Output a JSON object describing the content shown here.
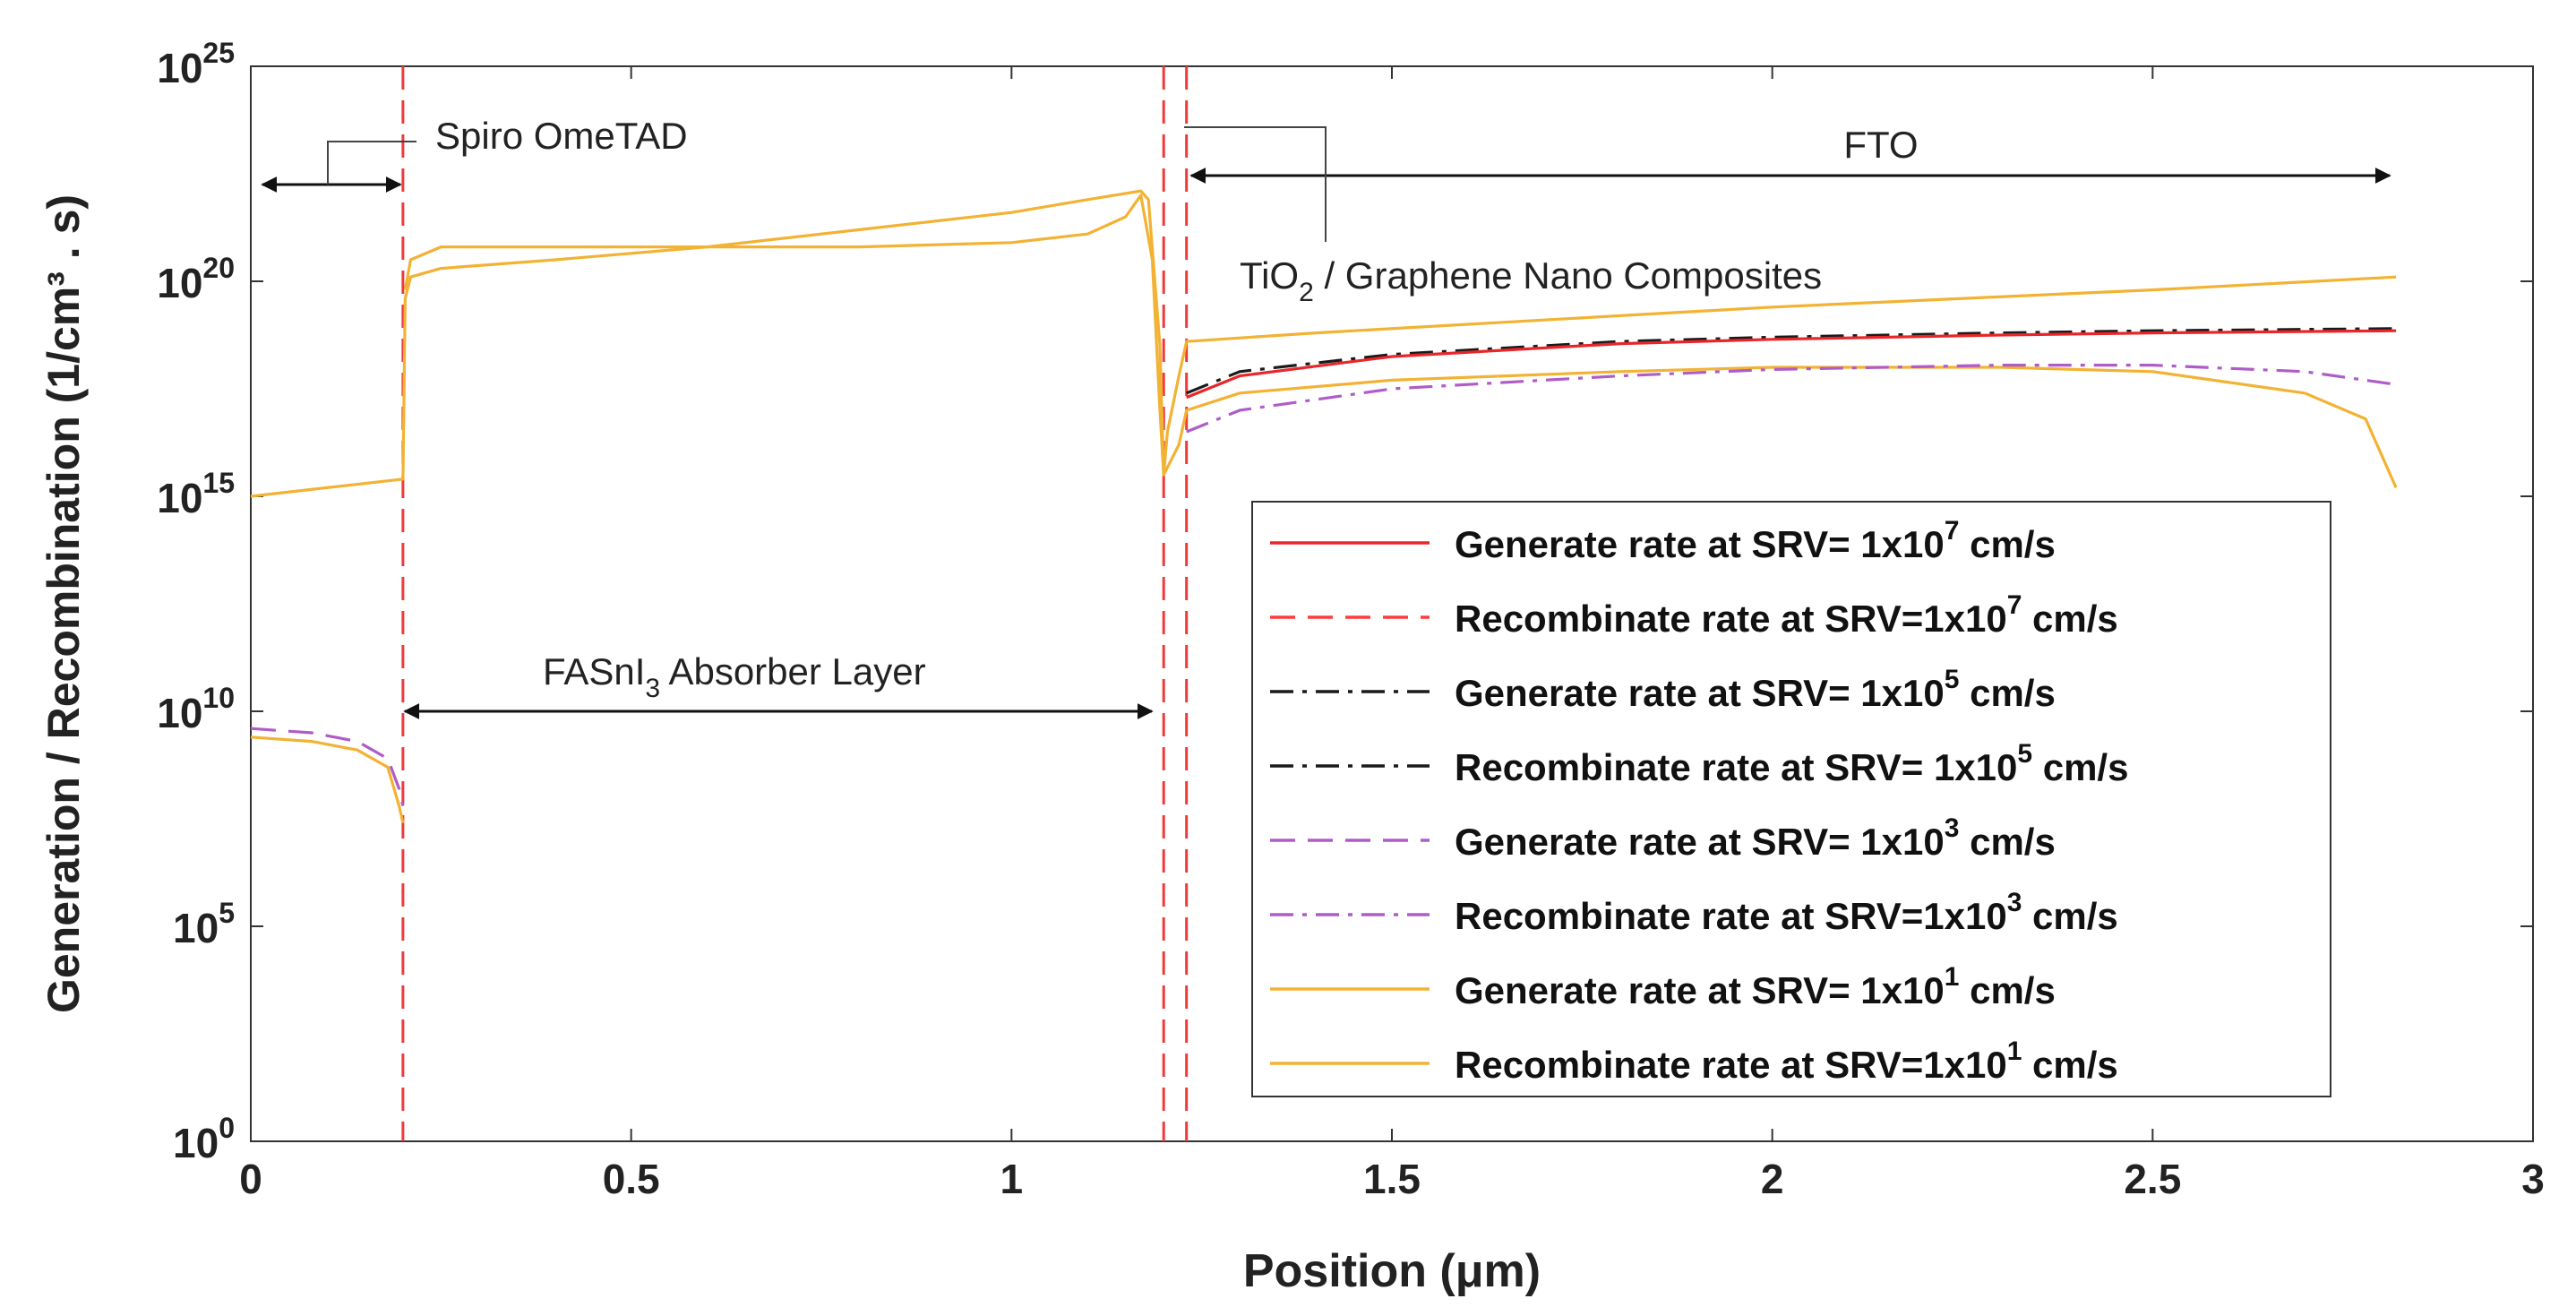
{
  "chart_data": {
    "type": "line",
    "title": "",
    "xlabel": "Position (μm)",
    "ylabel": "Generation / Recombination (1/cm³ . s)",
    "xlim": [
      0,
      3
    ],
    "ylim_log10": [
      0,
      25
    ],
    "yscale": "log",
    "x_ticks": [
      0,
      0.5,
      1,
      1.5,
      2,
      2.5,
      3
    ],
    "x_tick_labels": [
      "0",
      "0.5",
      "1",
      "1.5",
      "2",
      "2.5",
      "3"
    ],
    "y_ticks_log10": [
      0,
      5,
      10,
      15,
      20,
      25
    ],
    "y_tick_labels": [
      {
        "base": "10",
        "exp": "0"
      },
      {
        "base": "10",
        "exp": "5"
      },
      {
        "base": "10",
        "exp": "10"
      },
      {
        "base": "10",
        "exp": "15"
      },
      {
        "base": "10",
        "exp": "20"
      },
      {
        "base": "10",
        "exp": "25"
      }
    ],
    "interfaces_um": [
      0.2,
      1.2,
      1.23
    ],
    "annotations": {
      "spiro": "Spiro OmeTAD",
      "fto": "FTO",
      "tio2_prefix": "TiO",
      "tio2_sub": "2",
      "tio2_suffix": " / Graphene Nano Composites",
      "absorber_prefix": "FASnI",
      "absorber_sub": "3",
      "absorber_suffix": " Absorber Layer"
    },
    "legend": [
      {
        "label": "Generate rate at SRV= ",
        "base": "1x10",
        "exp": "7",
        "unit": " cm/s",
        "color": "#e8262a",
        "dash": "solid"
      },
      {
        "label": "Recombinate rate at SRV=",
        "base": "1x10",
        "exp": "7",
        "unit": " cm/s",
        "color": "#ff3b3b",
        "dash": "dashed"
      },
      {
        "label": "Generate rate at SRV= ",
        "base": "1x10",
        "exp": "5",
        "unit": " cm/s",
        "color": "#1a1a1a",
        "dash": "dashdot"
      },
      {
        "label": "Recombinate rate at SRV= ",
        "base": "1x10",
        "exp": "5",
        "unit": " cm/s",
        "color": "#1a1a1a",
        "dash": "dashdot"
      },
      {
        "label": "Generate rate at SRV= ",
        "base": "1x10",
        "exp": "3",
        "unit": " cm/s",
        "color": "#b05cc8",
        "dash": "dashed"
      },
      {
        "label": "Recombinate rate at SRV=",
        "base": "1x10",
        "exp": "3",
        "unit": " cm/s",
        "color": "#b05cc8",
        "dash": "dashdot"
      },
      {
        "label": "Generate rate at SRV= ",
        "base": "1x10",
        "exp": "1",
        "unit": " cm/s",
        "color": "#f2b233",
        "dash": "solid"
      },
      {
        "label": "Recombinate rate at SRV=",
        "base": "1x10",
        "exp": "1",
        "unit": " cm/s",
        "color": "#f2b233",
        "dash": "solid"
      }
    ],
    "series": [
      {
        "name": "Generate rate (orange)",
        "color": "#f2b233",
        "dash": "solid",
        "points": [
          [
            0,
            15.0
          ],
          [
            0.1,
            15.2
          ],
          [
            0.2,
            15.4
          ],
          [
            0.203,
            19.6
          ],
          [
            0.21,
            20.1
          ],
          [
            0.25,
            20.3
          ],
          [
            0.4,
            20.5
          ],
          [
            0.6,
            20.8
          ],
          [
            0.8,
            21.2
          ],
          [
            1.0,
            21.6
          ],
          [
            1.1,
            21.9
          ],
          [
            1.17,
            22.1
          ],
          [
            1.18,
            21.9
          ],
          [
            1.195,
            18.5
          ],
          [
            1.2,
            15.5
          ],
          [
            1.205,
            16.5
          ],
          [
            1.22,
            17.8
          ],
          [
            1.23,
            18.6
          ],
          [
            1.4,
            18.8
          ],
          [
            1.7,
            19.1
          ],
          [
            2.0,
            19.4
          ],
          [
            2.5,
            19.8
          ],
          [
            2.82,
            20.1
          ]
        ]
      },
      {
        "name": "Recombinate rate (orange)",
        "color": "#f2b233",
        "dash": "solid",
        "points": [
          [
            0.203,
            19.8
          ],
          [
            0.21,
            20.5
          ],
          [
            0.25,
            20.8
          ],
          [
            0.5,
            20.8
          ],
          [
            0.8,
            20.8
          ],
          [
            1.0,
            20.9
          ],
          [
            1.1,
            21.1
          ],
          [
            1.15,
            21.5
          ],
          [
            1.17,
            22.0
          ],
          [
            1.185,
            20.5
          ],
          [
            1.195,
            17.0
          ],
          [
            1.2,
            15.5
          ],
          [
            1.22,
            16.2
          ],
          [
            1.23,
            17.0
          ],
          [
            1.3,
            17.4
          ],
          [
            1.5,
            17.7
          ],
          [
            1.8,
            17.9
          ],
          [
            2.0,
            18.0
          ],
          [
            2.3,
            18.0
          ],
          [
            2.5,
            17.9
          ],
          [
            2.7,
            17.4
          ],
          [
            2.78,
            16.8
          ],
          [
            2.82,
            15.2
          ]
        ]
      },
      {
        "name": "SRV 1e5 (black dash-dot)",
        "color": "#1a1a1a",
        "dash": "dashdot",
        "points": [
          [
            1.23,
            17.4
          ],
          [
            1.3,
            17.9
          ],
          [
            1.5,
            18.3
          ],
          [
            1.8,
            18.6
          ],
          [
            2.0,
            18.7
          ],
          [
            2.3,
            18.8
          ],
          [
            2.5,
            18.85
          ],
          [
            2.82,
            18.9
          ]
        ]
      },
      {
        "name": "SRV 1e7 (red solid)",
        "color": "#e8262a",
        "dash": "solid",
        "points": [
          [
            1.23,
            17.3
          ],
          [
            1.3,
            17.8
          ],
          [
            1.5,
            18.25
          ],
          [
            1.8,
            18.55
          ],
          [
            2.0,
            18.65
          ],
          [
            2.3,
            18.75
          ],
          [
            2.5,
            18.8
          ],
          [
            2.82,
            18.85
          ]
        ]
      },
      {
        "name": "SRV 1e3 (purple dash-dot)",
        "color": "#b05cc8",
        "dash": "dashdot",
        "points": [
          [
            1.23,
            16.5
          ],
          [
            1.3,
            17.0
          ],
          [
            1.5,
            17.5
          ],
          [
            1.8,
            17.8
          ],
          [
            2.0,
            17.95
          ],
          [
            2.3,
            18.05
          ],
          [
            2.5,
            18.05
          ],
          [
            2.7,
            17.9
          ],
          [
            2.82,
            17.6
          ]
        ]
      },
      {
        "name": "Spiro recombination (purple)",
        "color": "#b05cc8",
        "dash": "dashed",
        "points": [
          [
            0,
            9.6
          ],
          [
            0.08,
            9.5
          ],
          [
            0.14,
            9.3
          ],
          [
            0.18,
            8.9
          ],
          [
            0.195,
            8.2
          ],
          [
            0.2,
            7.8
          ]
        ]
      },
      {
        "name": "Spiro recombination (orange)",
        "color": "#f2b233",
        "dash": "solid",
        "points": [
          [
            0,
            9.4
          ],
          [
            0.08,
            9.3
          ],
          [
            0.14,
            9.1
          ],
          [
            0.18,
            8.7
          ],
          [
            0.195,
            7.8
          ],
          [
            0.2,
            7.4
          ]
        ]
      }
    ]
  }
}
